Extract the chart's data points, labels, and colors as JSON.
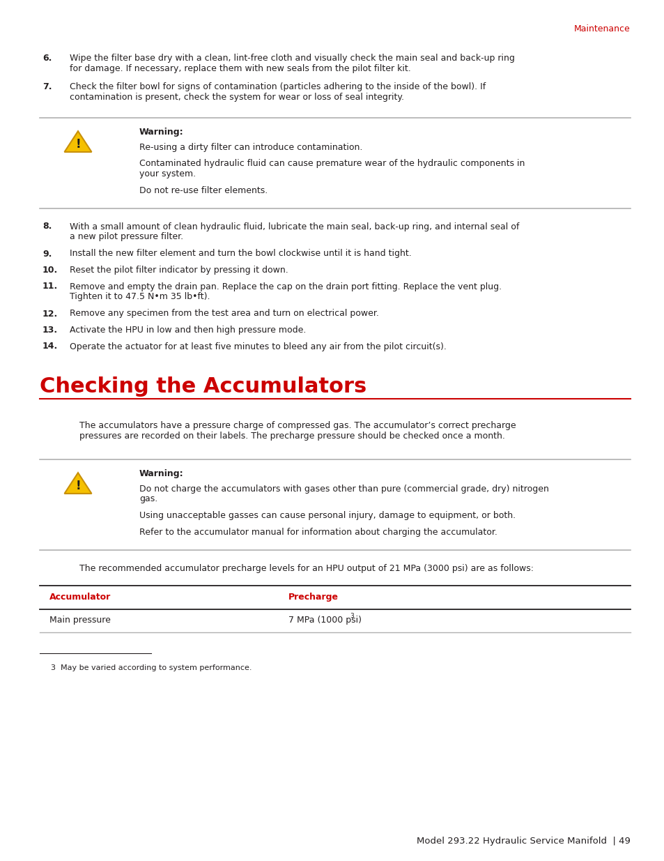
{
  "bg_color": "#ffffff",
  "text_color": "#231f20",
  "red_color": "#cc0000",
  "gray_line_color": "#b0b0b0",
  "dark_line_color": "#231f20",
  "header_label": "Maintenance",
  "item_fontsize": 9.0,
  "warning_bold": "Warning:",
  "items_top": [
    {
      "num": "6.",
      "text": "Wipe the filter base dry with a clean, lint-free cloth and visually check the main seal and back-up ring\nfor damage. If necessary, replace them with new seals from the pilot filter kit."
    },
    {
      "num": "7.",
      "text": "Check the filter bowl for signs of contamination (particles adhering to the inside of the bowl). If\ncontamination is present, check the system for wear or loss of seal integrity."
    }
  ],
  "warning1_lines": [
    "Re-using a dirty filter can introduce contamination.",
    "Contaminated hydraulic fluid can cause premature wear of the hydraulic components in\nyour system.",
    "Do not re-use filter elements."
  ],
  "items_mid": [
    {
      "num": "8.",
      "text": "With a small amount of clean hydraulic fluid, lubricate the main seal, back-up ring, and internal seal of\na new pilot pressure filter."
    },
    {
      "num": "9.",
      "text": "Install the new filter element and turn the bowl clockwise until it is hand tight."
    },
    {
      "num": "10.",
      "text": "Reset the pilot filter indicator by pressing it down."
    },
    {
      "num": "11.",
      "text": "Remove and empty the drain pan. Replace the cap on the drain port fitting. Replace the vent plug.\nTighten it to 47.5 N•m 35 lb•ft)."
    },
    {
      "num": "12.",
      "text": "Remove any specimen from the test area and turn on electrical power."
    },
    {
      "num": "13.",
      "text": "Activate the HPU in low and then high pressure mode."
    },
    {
      "num": "14.",
      "text": "Operate the actuator for at least five minutes to bleed any air from the pilot circuit(s)."
    }
  ],
  "section_title": "Checking the Accumulators",
  "section_intro": "The accumulators have a pressure charge of compressed gas. The accumulator’s correct precharge\npressures are recorded on their labels. The precharge pressure should be checked once a month.",
  "warning2_lines": [
    "Do not charge the accumulators with gases other than pure (commercial grade, dry) nitrogen\ngas.",
    "Using unacceptable gasses can cause personal injury, damage to equipment, or both.",
    "Refer to the accumulator manual for information about charging the accumulator."
  ],
  "table_intro": "The recommended accumulator precharge levels for an HPU output of 21 MPa (3000 psi) are as follows:",
  "table_col1_header": "Accumulator",
  "table_col2_header": "Precharge",
  "table_row1_col1": "Main pressure",
  "table_row1_col2": "7 MPa (1000 psi)",
  "table_row1_col2_super": "3",
  "footnote_num": "3",
  "footnote_text": "May be varied according to system performance.",
  "footer_text": "Model 293.22 Hydraulic Service Manifold  | 49"
}
